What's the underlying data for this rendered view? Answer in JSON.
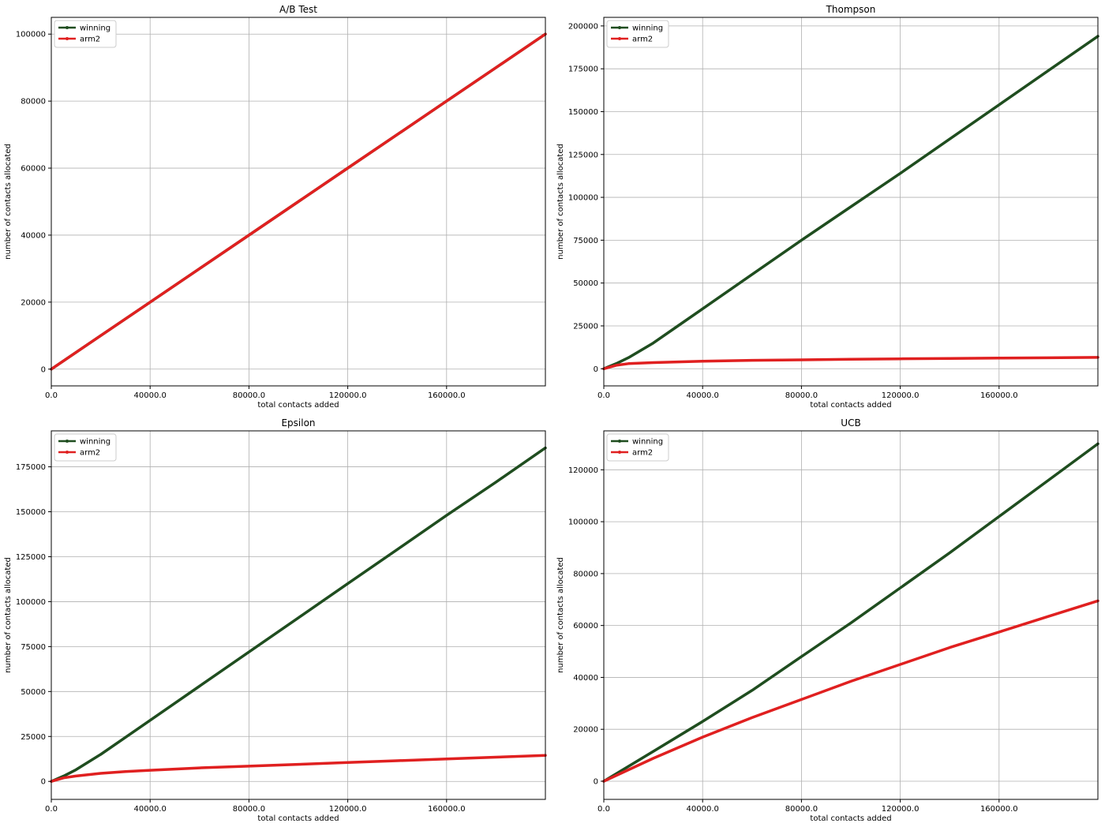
{
  "chart_data": [
    {
      "type": "line",
      "title": "A/B Test",
      "xlabel": "total contacts added",
      "ylabel": "number of contacts allocated",
      "xlim": [
        0,
        200000
      ],
      "ylim": [
        -5000,
        105000
      ],
      "xticks": [
        0,
        40000,
        80000,
        120000,
        160000
      ],
      "xtick_labels": [
        "0.0",
        "40000.0",
        "80000.0",
        "120000.0",
        "160000.0"
      ],
      "yticks": [
        0,
        20000,
        40000,
        60000,
        80000,
        100000
      ],
      "ytick_labels": [
        "0",
        "20000",
        "40000",
        "60000",
        "80000",
        "100000"
      ],
      "grid": true,
      "legend": "upper-left",
      "x": [
        0,
        20000,
        40000,
        60000,
        80000,
        100000,
        120000,
        140000,
        160000,
        180000,
        200000
      ],
      "series": [
        {
          "name": "winning",
          "color": "#1f4d1f",
          "values": [
            0,
            10000,
            20000,
            30000,
            40000,
            50000,
            60000,
            70000,
            80000,
            90000,
            100000
          ]
        },
        {
          "name": "arm2",
          "color": "#e02020",
          "values": [
            0,
            10000,
            20000,
            30000,
            40000,
            50000,
            60000,
            70000,
            80000,
            90000,
            100000
          ]
        }
      ]
    },
    {
      "type": "line",
      "title": "Thompson",
      "xlabel": "total contacts added",
      "ylabel": "number of contacts allocated",
      "xlim": [
        0,
        200000
      ],
      "ylim": [
        -10000,
        205000
      ],
      "xticks": [
        0,
        40000,
        80000,
        120000,
        160000
      ],
      "xtick_labels": [
        "0.0",
        "40000.0",
        "80000.0",
        "120000.0",
        "160000.0"
      ],
      "yticks": [
        0,
        25000,
        50000,
        75000,
        100000,
        125000,
        150000,
        175000,
        200000
      ],
      "ytick_labels": [
        "0",
        "25000",
        "50000",
        "75000",
        "100000",
        "125000",
        "150000",
        "175000",
        "200000"
      ],
      "grid": true,
      "legend": "upper-left",
      "x": [
        0,
        5000,
        10000,
        20000,
        30000,
        40000,
        60000,
        80000,
        100000,
        120000,
        140000,
        160000,
        180000,
        200000
      ],
      "series": [
        {
          "name": "winning",
          "color": "#1f4d1f",
          "values": [
            0,
            3000,
            6500,
            15000,
            25000,
            35000,
            55000,
            75000,
            94500,
            114000,
            134000,
            154000,
            174000,
            194000
          ]
        },
        {
          "name": "arm2",
          "color": "#e02020",
          "values": [
            0,
            2000,
            3000,
            3600,
            4000,
            4400,
            4900,
            5200,
            5500,
            5800,
            6000,
            6200,
            6400,
            6600
          ]
        }
      ]
    },
    {
      "type": "line",
      "title": "Epsilon",
      "xlabel": "total contacts added",
      "ylabel": "number of contacts allocated",
      "xlim": [
        0,
        200000
      ],
      "ylim": [
        -10000,
        195000
      ],
      "xticks": [
        0,
        40000,
        80000,
        120000,
        160000
      ],
      "xtick_labels": [
        "0.0",
        "40000.0",
        "80000.0",
        "120000.0",
        "160000.0"
      ],
      "yticks": [
        0,
        25000,
        50000,
        75000,
        100000,
        125000,
        150000,
        175000
      ],
      "ytick_labels": [
        "0",
        "25000",
        "50000",
        "75000",
        "100000",
        "125000",
        "150000",
        "175000"
      ],
      "grid": true,
      "legend": "upper-left",
      "x": [
        0,
        5000,
        10000,
        20000,
        30000,
        40000,
        60000,
        80000,
        100000,
        120000,
        140000,
        160000,
        180000,
        200000
      ],
      "series": [
        {
          "name": "winning",
          "color": "#1f4d1f",
          "values": [
            0,
            3000,
            6500,
            15000,
            24500,
            34000,
            53000,
            72000,
            91000,
            110000,
            129000,
            148000,
            166500,
            185500
          ]
        },
        {
          "name": "arm2",
          "color": "#e02020",
          "values": [
            0,
            2000,
            3000,
            4500,
            5500,
            6200,
            7500,
            8500,
            9500,
            10500,
            11500,
            12500,
            13500,
            14500
          ]
        }
      ]
    },
    {
      "type": "line",
      "title": "UCB",
      "xlabel": "total contacts added",
      "ylabel": "number of contacts allocated",
      "xlim": [
        0,
        200000
      ],
      "ylim": [
        -7000,
        135000
      ],
      "xticks": [
        0,
        40000,
        80000,
        120000,
        160000
      ],
      "xtick_labels": [
        "0.0",
        "40000.0",
        "80000.0",
        "120000.0",
        "160000.0"
      ],
      "yticks": [
        0,
        20000,
        40000,
        60000,
        80000,
        100000,
        120000
      ],
      "ytick_labels": [
        "0",
        "20000",
        "40000",
        "60000",
        "80000",
        "100000",
        "120000"
      ],
      "grid": true,
      "legend": "upper-left",
      "x": [
        0,
        20000,
        40000,
        60000,
        80000,
        100000,
        120000,
        140000,
        160000,
        180000,
        200000
      ],
      "series": [
        {
          "name": "winning",
          "color": "#1f4d1f",
          "values": [
            0,
            11500,
            23000,
            35000,
            48000,
            61000,
            74500,
            88000,
            102000,
            116000,
            130000
          ]
        },
        {
          "name": "arm2",
          "color": "#e02020",
          "values": [
            0,
            8800,
            17000,
            24500,
            31500,
            38500,
            45000,
            51500,
            57500,
            63500,
            69500
          ]
        }
      ]
    }
  ]
}
